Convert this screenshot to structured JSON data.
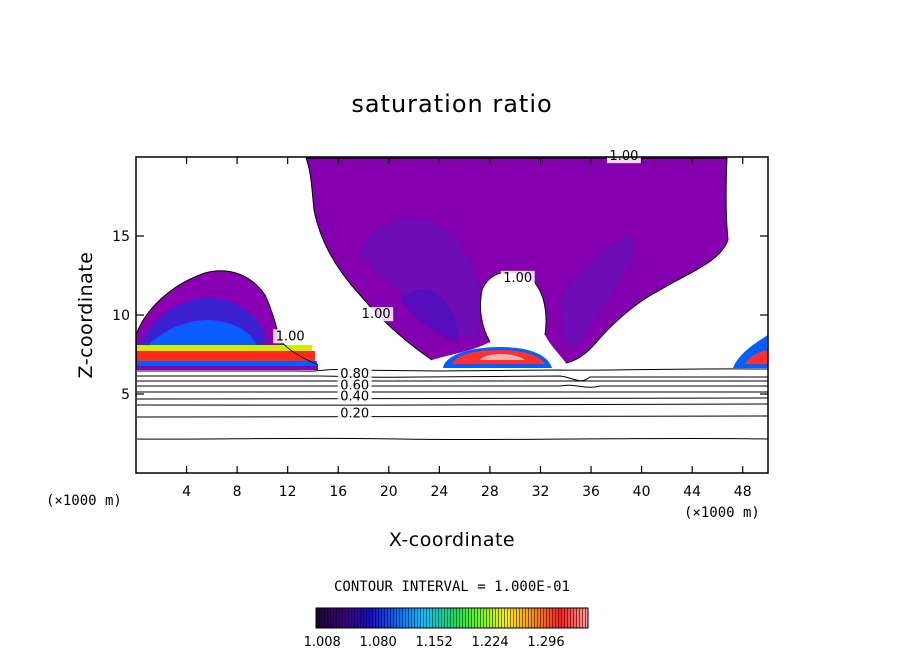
{
  "chart_data": {
    "type": "contour",
    "title": "saturation ratio",
    "xlabel": "X-coordinate",
    "ylabel": "Z-coordinate",
    "x_unit": "(×1000 m)",
    "xlim": [
      0,
      50
    ],
    "ylim": [
      0,
      20
    ],
    "x_ticks": [
      4,
      8,
      12,
      16,
      20,
      24,
      28,
      32,
      36,
      40,
      44,
      48
    ],
    "y_ticks": [
      5,
      10,
      15
    ],
    "contour_labels": [
      {
        "text": "1.00",
        "x": 38.6,
        "z": 19.8
      },
      {
        "text": "1.00",
        "x": 30.2,
        "z": 12.1
      },
      {
        "text": "1.00",
        "x": 19.0,
        "z": 9.8
      },
      {
        "text": "1.00",
        "x": 12.2,
        "z": 8.4
      },
      {
        "text": "0.80",
        "x": 17.3,
        "z": 6.0
      },
      {
        "text": "0.60",
        "x": 17.3,
        "z": 5.3
      },
      {
        "text": "0.40",
        "x": 17.3,
        "z": 4.6
      },
      {
        "text": "0.20",
        "x": 17.3,
        "z": 3.5
      }
    ],
    "contour_interval_text": "CONTOUR INTERVAL = 1.000E-01",
    "colorbar": {
      "min": 1.0,
      "max": 1.35,
      "labels": [
        "1.008",
        "1.080",
        "1.152",
        "1.224",
        "1.296"
      ],
      "colors": [
        "#20003a",
        "#3a007a",
        "#1a0ad0",
        "#0070ff",
        "#00c8ff",
        "#00e070",
        "#70ff00",
        "#fff000",
        "#ff9000",
        "#ff2020",
        "#ffa0a0"
      ]
    },
    "grid": false,
    "legend": "bottom-center"
  }
}
